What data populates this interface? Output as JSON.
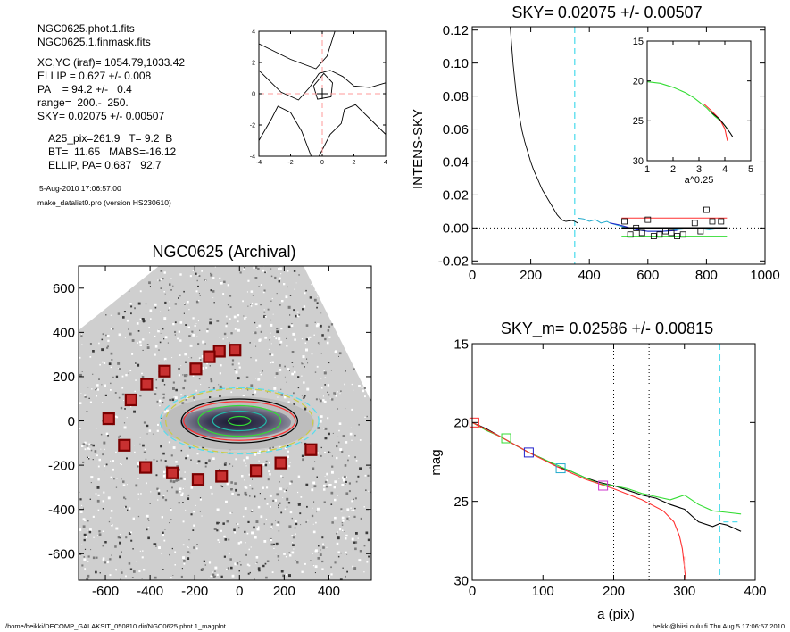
{
  "info": {
    "lines": [
      "NGC0625.phot.1.fits",
      "NGC0625.1.finmask.fits",
      "XC,YC (iraf)=  1054.79,1033.42",
      "ELLIP = 0.627 +/- 0.008",
      "PA    = 94.2 +/-   0.4",
      "range=  200.-  250.",
      "SKY= 0.02075 +/- 0.00507"
    ],
    "params": [
      "A25_pix=261.9   T= 9.2  B",
      "BT=  11.65   MABS=-16.12",
      "ELLIP, PA= 0.687   92.7"
    ],
    "date": "5-Aug-2010 17:06:57.00",
    "program": "make_datalist0.pro (version HS230610)"
  },
  "footer": {
    "left": "/home/heikki/DECOMP_GALAKSIT_050810.dir/NGC0625.phot.1_magplot",
    "right": "heikki@hiisi.oulu.fi  Thu Aug  5 17:06:57 2010"
  },
  "colors": {
    "black": "#000000",
    "red": "#ff3030",
    "green": "#33dd33",
    "cyan": "#22aacc",
    "cyan_dashed": "#55ddee",
    "blue": "#2222cc",
    "magenta": "#cc33cc",
    "pink_dashed": "#ff9999",
    "square_edge": "#7a0000",
    "square_fill": "#c83030"
  },
  "chart_data": [
    {
      "id": "centroid",
      "type": "contour",
      "xlim": [
        -4,
        4
      ],
      "ylim": [
        -4,
        4
      ],
      "xticks": [
        -4,
        -2,
        0,
        2,
        4
      ],
      "yticks": [
        -4,
        -2,
        0,
        2,
        4
      ],
      "marker": [
        0,
        0
      ],
      "contours": [
        [
          [
            -4,
            3.2
          ],
          [
            -2,
            2.2
          ],
          [
            -0.4,
            1.6
          ],
          [
            0.3,
            2.4
          ],
          [
            0.8,
            4
          ]
        ],
        [
          [
            -4,
            1.5
          ],
          [
            -3.4,
            0.9
          ],
          [
            -2.6,
            0.1
          ],
          [
            -1.5,
            -0.4
          ],
          [
            -0.8,
            0.4
          ],
          [
            -0.2,
            1.3
          ],
          [
            0.5,
            1.5
          ],
          [
            1.3,
            1.1
          ],
          [
            2.0,
            0.5
          ],
          [
            3.0,
            0.4
          ],
          [
            4,
            0.7
          ]
        ],
        [
          [
            -4,
            -3.0
          ],
          [
            -3.2,
            -1.6
          ],
          [
            -2.8,
            -0.8
          ],
          [
            -2.0,
            -1.2
          ],
          [
            -1.3,
            -2.4
          ],
          [
            -0.7,
            -4
          ]
        ],
        [
          [
            4,
            -2.6
          ],
          [
            3.0,
            -1.6
          ],
          [
            2.1,
            -0.7
          ],
          [
            1.4,
            -1.0
          ],
          [
            1.2,
            -1.9
          ],
          [
            0.5,
            -2.6
          ],
          [
            -0.2,
            -4
          ]
        ],
        [
          [
            -0.55,
            0.5
          ],
          [
            0.1,
            1.3
          ],
          [
            0.65,
            0.7
          ],
          [
            0.55,
            -0.2
          ],
          [
            -0.3,
            -0.35
          ],
          [
            -0.55,
            0.5
          ]
        ]
      ]
    },
    {
      "id": "sky",
      "type": "line",
      "title": "SKY= 0.02075 +/- 0.00507",
      "ylabel": "INTENS-SKY",
      "xlim": [
        0,
        1000
      ],
      "ylim": [
        -0.022,
        0.122
      ],
      "xticks": [
        0,
        200,
        400,
        600,
        800,
        1000
      ],
      "yticks": [
        -0.02,
        0.0,
        0.02,
        0.04,
        0.06,
        0.08,
        0.1,
        0.12
      ],
      "ytick_labels": [
        "-0.02",
        "0.00",
        "0.02",
        "0.04",
        "0.06",
        "0.08",
        "0.10",
        "0.12"
      ],
      "profile": {
        "x": [
          130,
          135,
          140,
          145,
          150,
          155,
          160,
          165,
          170,
          180,
          190,
          200,
          210,
          220,
          230,
          240,
          250,
          260,
          270,
          280,
          290,
          300,
          310,
          320,
          340,
          350,
          360
        ],
        "y": [
          0.122,
          0.11,
          0.099,
          0.09,
          0.082,
          0.075,
          0.069,
          0.064,
          0.059,
          0.052,
          0.046,
          0.04,
          0.035,
          0.031,
          0.027,
          0.023,
          0.02,
          0.017,
          0.014,
          0.011,
          0.008,
          0.006,
          0.0045,
          0.004,
          0.0045,
          0.004,
          0.003
        ]
      },
      "cyan_trace": {
        "x": [
          360,
          380,
          400,
          420,
          440,
          460,
          470,
          490,
          510,
          530,
          560,
          600,
          650,
          700,
          760,
          810,
          860
        ],
        "y": [
          0.006,
          0.0055,
          0.004,
          0.005,
          0.003,
          0.004,
          0.003,
          0.002,
          0.001,
          0.0,
          -0.001,
          -0.002,
          -0.002,
          -0.001,
          0.0,
          -0.001,
          0.0
        ]
      },
      "blue_trace": {
        "x": [
          470,
          500,
          520,
          560,
          600,
          650,
          700
        ],
        "y": [
          0.003,
          0.002,
          0.001,
          -0.001,
          -0.002,
          -0.002,
          -0.0015
        ]
      },
      "sky_range": [
        510,
        870
      ],
      "sky_line": 0.0,
      "upper_line": 0.006,
      "lower_line": -0.005,
      "marker_x": 350,
      "points": {
        "x": [
          520,
          540,
          560,
          580,
          600,
          620,
          640,
          660,
          680,
          700,
          720,
          760,
          780,
          800,
          820,
          850
        ],
        "y": [
          0.004,
          -0.004,
          0.0,
          -0.003,
          0.005,
          -0.005,
          -0.004,
          -0.002,
          -0.003,
          -0.005,
          -0.004,
          0.003,
          -0.002,
          0.011,
          0.004,
          0.004
        ]
      }
    },
    {
      "id": "inset",
      "type": "line",
      "xlabel": "a^0.25",
      "xlim": [
        1,
        5
      ],
      "ylim": [
        30,
        15
      ],
      "xticks": [
        1,
        2,
        3,
        4,
        5
      ],
      "yticks": [
        15,
        20,
        25,
        30
      ],
      "green": {
        "x": [
          1.0,
          1.5,
          2.0,
          2.5,
          2.8,
          3.0,
          3.3,
          3.6,
          3.9,
          4.1
        ],
        "y": [
          20.1,
          20.3,
          20.8,
          21.5,
          22.1,
          22.6,
          23.4,
          24.4,
          25.2,
          26.0
        ]
      },
      "red": {
        "x": [
          3.2,
          3.5,
          3.8,
          4.0,
          4.1
        ],
        "y": [
          22.9,
          23.8,
          24.8,
          26.0,
          27.5
        ]
      },
      "black": {
        "x": [
          3.5,
          3.8,
          4.0,
          4.2,
          4.3
        ],
        "y": [
          24.0,
          24.8,
          25.6,
          26.5,
          27.0
        ]
      }
    },
    {
      "id": "image",
      "type": "scatter",
      "title": "NGC0625 (Archival)",
      "xlim": [
        -720,
        590
      ],
      "ylim": [
        -720,
        700
      ],
      "xticks": [
        -600,
        -400,
        -200,
        0,
        200,
        400
      ],
      "yticks": [
        -600,
        -400,
        -200,
        0,
        200,
        400,
        600
      ],
      "sky_boxes": {
        "x": [
          -20,
          -90,
          -135,
          -195,
          -335,
          -415,
          -485,
          -585,
          -515,
          -420,
          -300,
          -185,
          -80,
          75,
          185,
          320
        ],
        "y": [
          320,
          315,
          290,
          235,
          225,
          165,
          95,
          10,
          -110,
          -210,
          -235,
          -265,
          -250,
          -225,
          -190,
          -130
        ]
      },
      "ellipses": [
        {
          "a": 355,
          "ell": 0.58,
          "color": "#55ddee",
          "dashed": true
        },
        {
          "a": 330,
          "ell": 0.56,
          "color": "#cccc44",
          "dashed": true
        },
        {
          "a": 260,
          "ell": 0.62,
          "color": "#000000",
          "dashed": false
        },
        {
          "a": 250,
          "ell": 0.65,
          "color": "#ff3030",
          "dashed": false
        },
        {
          "a": 185,
          "ell": 0.63,
          "color": "#33dd33",
          "dashed": false
        },
        {
          "a": 120,
          "ell": 0.63,
          "color": "#22bbaa",
          "dashed": false
        },
        {
          "a": 50,
          "ell": 0.6,
          "color": "#33dd33",
          "dashed": false
        }
      ]
    },
    {
      "id": "mag",
      "type": "line",
      "title": "SKY_m=  0.02586 +/- 0.00815",
      "xlabel": "a (pix)",
      "ylabel": "mag",
      "xlim": [
        0,
        400
      ],
      "ylim": [
        30,
        15
      ],
      "xticks": [
        0,
        100,
        200,
        300,
        400
      ],
      "yticks": [
        15,
        20,
        25,
        30
      ],
      "vlines_dotted": [
        200,
        250
      ],
      "marker_x": 350,
      "series": [
        {
          "color": "#000000",
          "x": [
            0,
            20,
            40,
            60,
            80,
            100,
            120,
            140,
            160,
            180,
            200,
            220,
            240,
            260,
            280,
            300,
            310,
            320,
            340,
            350,
            360,
            380
          ],
          "y": [
            20.0,
            20.4,
            20.9,
            21.4,
            21.9,
            22.3,
            22.8,
            23.1,
            23.5,
            23.8,
            24.0,
            24.3,
            24.6,
            24.8,
            25.2,
            25.5,
            25.9,
            26.3,
            26.6,
            26.4,
            26.5,
            26.9
          ]
        },
        {
          "color": "#33dd33",
          "x": [
            0,
            20,
            40,
            60,
            80,
            100,
            120,
            140,
            160,
            180,
            200,
            220,
            240,
            260,
            280,
            300,
            320,
            340,
            360,
            380
          ],
          "y": [
            20.0,
            20.5,
            20.9,
            21.4,
            21.9,
            22.3,
            22.7,
            23.1,
            23.5,
            23.9,
            24.0,
            24.2,
            24.5,
            24.7,
            24.9,
            24.6,
            25.2,
            25.6,
            25.7,
            25.8
          ]
        },
        {
          "color": "#ff3030",
          "x": [
            0,
            40,
            80,
            120,
            160,
            200,
            240,
            270,
            285,
            293,
            297,
            300,
            302
          ],
          "y": [
            20.0,
            20.9,
            21.9,
            22.8,
            23.6,
            24.2,
            24.9,
            25.6,
            26.3,
            27.2,
            28.0,
            29.2,
            30.0
          ]
        }
      ],
      "markers": [
        {
          "x": 3,
          "y": 20.0,
          "color": "#ff3030"
        },
        {
          "x": 48,
          "y": 21.0,
          "color": "#33dd33"
        },
        {
          "x": 80,
          "y": 21.9,
          "color": "#2222cc"
        },
        {
          "x": 125,
          "y": 22.9,
          "color": "#22aacc"
        },
        {
          "x": 185,
          "y": 24.0,
          "color": "#cc33cc"
        }
      ],
      "sky_tick": {
        "x": [
          355,
          380
        ],
        "y": 26.3
      }
    }
  ]
}
